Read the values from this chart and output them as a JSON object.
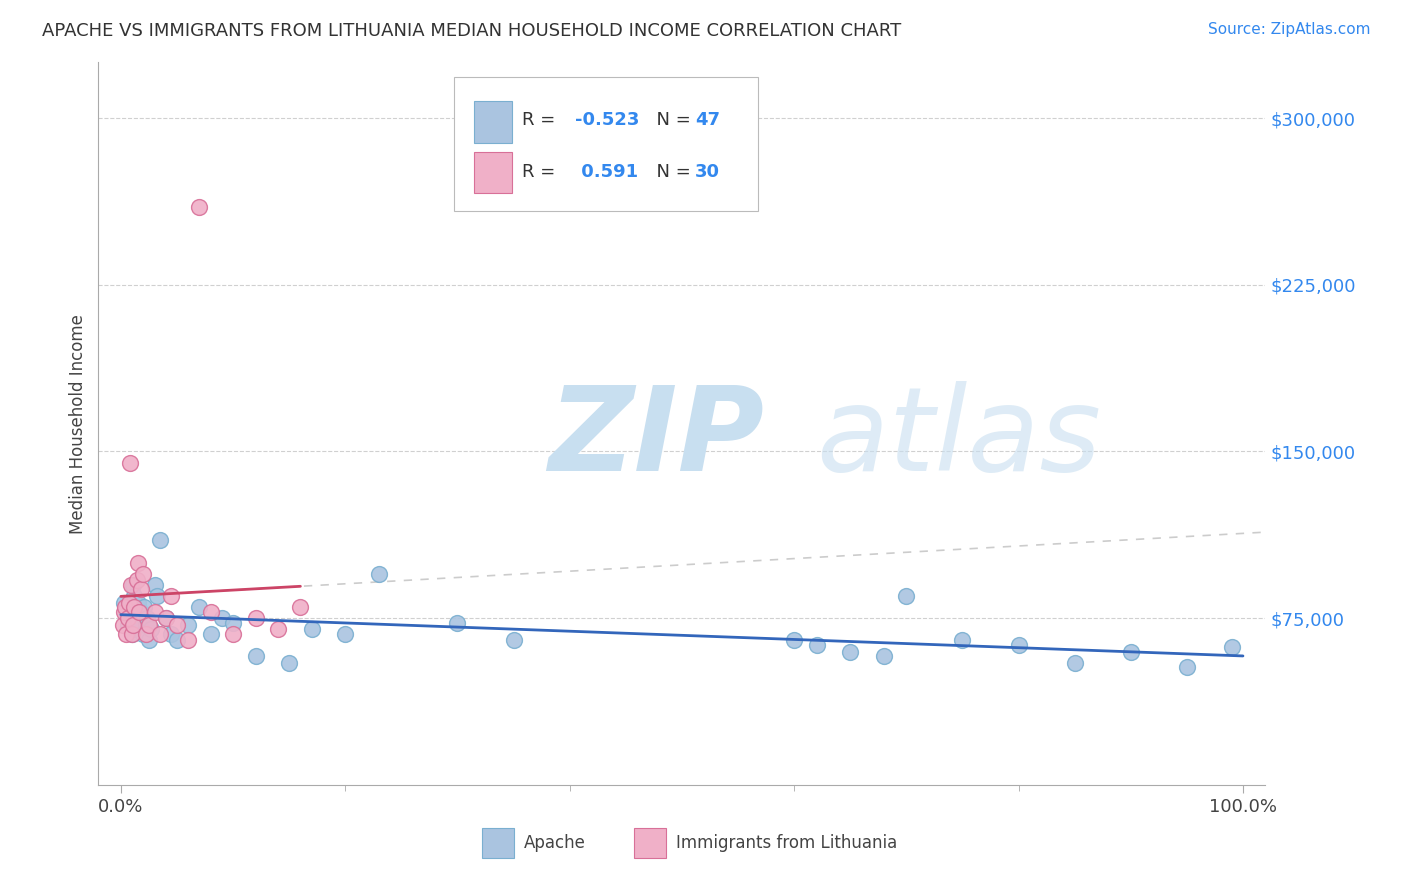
{
  "title": "APACHE VS IMMIGRANTS FROM LITHUANIA MEDIAN HOUSEHOLD INCOME CORRELATION CHART",
  "source": "Source: ZipAtlas.com",
  "ylabel": "Median Household Income",
  "xlim": [
    -2,
    102
  ],
  "ylim": [
    0,
    325000
  ],
  "yticks": [
    75000,
    150000,
    225000,
    300000
  ],
  "ytick_labels": [
    "$75,000",
    "$150,000",
    "$225,000",
    "$300,000"
  ],
  "xticks": [
    0,
    100
  ],
  "xtick_labels": [
    "0.0%",
    "100.0%"
  ],
  "background_color": "#ffffff",
  "grid_color": "#d0d0d0",
  "watermark_zip": "ZIP",
  "watermark_atlas": "atlas",
  "watermark_color_zip": "#c8dff0",
  "watermark_color_atlas": "#c8dff0",
  "apache_color": "#aac4e0",
  "apache_edge_color": "#7aafd0",
  "lithuania_color": "#f0b0c8",
  "lithuania_edge_color": "#d87098",
  "apache_line_color": "#3366bb",
  "lithuania_line_color": "#cc4466",
  "apache_R": -0.523,
  "apache_N": 47,
  "lithuania_R": 0.591,
  "lithuania_N": 30,
  "apache_scatter_x": [
    0.3,
    0.5,
    0.6,
    0.8,
    1.0,
    1.0,
    1.1,
    1.2,
    1.3,
    1.5,
    1.6,
    1.8,
    2.0,
    2.1,
    2.2,
    2.3,
    2.5,
    2.7,
    3.0,
    3.2,
    3.5,
    4.0,
    4.5,
    5.0,
    6.0,
    7.0,
    8.0,
    9.0,
    10.0,
    12.0,
    15.0,
    17.0,
    20.0,
    23.0,
    30.0,
    35.0,
    60.0,
    62.0,
    65.0,
    68.0,
    70.0,
    75.0,
    80.0,
    85.0,
    90.0,
    95.0,
    99.0
  ],
  "apache_scatter_y": [
    82000,
    78000,
    72000,
    80000,
    75000,
    68000,
    90000,
    85000,
    70000,
    82000,
    73000,
    78000,
    68000,
    80000,
    72000,
    75000,
    65000,
    70000,
    90000,
    85000,
    110000,
    75000,
    68000,
    65000,
    72000,
    80000,
    68000,
    75000,
    73000,
    58000,
    55000,
    70000,
    68000,
    95000,
    73000,
    65000,
    65000,
    63000,
    60000,
    58000,
    85000,
    65000,
    63000,
    55000,
    60000,
    53000,
    62000
  ],
  "lithuania_scatter_x": [
    0.2,
    0.3,
    0.4,
    0.5,
    0.6,
    0.7,
    0.8,
    0.9,
    1.0,
    1.1,
    1.2,
    1.4,
    1.5,
    1.6,
    1.8,
    2.0,
    2.2,
    2.5,
    3.0,
    3.5,
    4.0,
    4.5,
    5.0,
    6.0,
    7.0,
    8.0,
    10.0,
    12.0,
    14.0,
    16.0
  ],
  "lithuania_scatter_y": [
    72000,
    78000,
    80000,
    68000,
    75000,
    82000,
    145000,
    90000,
    68000,
    72000,
    80000,
    92000,
    100000,
    78000,
    88000,
    95000,
    68000,
    72000,
    78000,
    68000,
    75000,
    85000,
    72000,
    65000,
    260000,
    78000,
    68000,
    75000,
    70000,
    80000
  ],
  "lith_line_x_start": 0.0,
  "lith_line_x_end": 16.0,
  "lith_dashed_x_start": 0.0,
  "lith_dashed_x_end": 102.0
}
